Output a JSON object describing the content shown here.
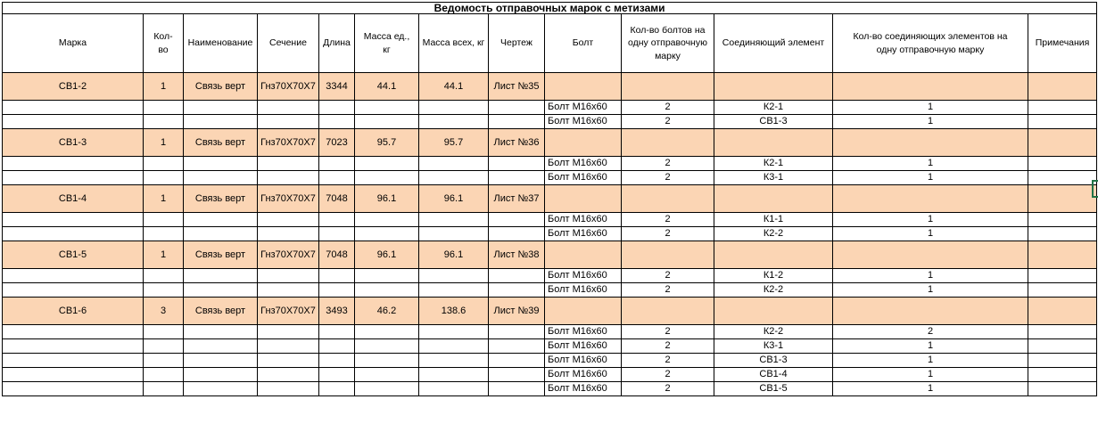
{
  "title": "Ведомость отправочных марок с метизами",
  "columns": [
    "Марка",
    "Кол-во",
    "Наименование",
    "Сечение",
    "Длина",
    "Масса ед., кг",
    "Масса всех, кг",
    "Чертеж",
    "Болт",
    "Кол-во болтов на одну отправочную марку",
    "Соединяющий элемент",
    "Кол-во соединяющих элементов на одну отправочную марку",
    "Примечания"
  ],
  "blocks": [
    {
      "mark": {
        "marka": "СВ1-2",
        "qty": "1",
        "name": "Связь верт",
        "section": "Гнз70Х70Х7",
        "length": "3344",
        "unit_mass": "44.1",
        "total_mass": "44.1",
        "sheet": "Лист №35"
      },
      "bolts": [
        {
          "bolt": "Болт М16х60",
          "bolt_qty": "2",
          "element": "К2-1",
          "element_qty": "1"
        },
        {
          "bolt": "Болт М16х60",
          "bolt_qty": "2",
          "element": "СВ1-3",
          "element_qty": "1"
        }
      ]
    },
    {
      "mark": {
        "marka": "СВ1-3",
        "qty": "1",
        "name": "Связь верт",
        "section": "Гнз70Х70Х7",
        "length": "7023",
        "unit_mass": "95.7",
        "total_mass": "95.7",
        "sheet": "Лист №36"
      },
      "bolts": [
        {
          "bolt": "Болт М16х60",
          "bolt_qty": "2",
          "element": "К2-1",
          "element_qty": "1"
        },
        {
          "bolt": "Болт М16х60",
          "bolt_qty": "2",
          "element": "К3-1",
          "element_qty": "1"
        }
      ]
    },
    {
      "mark": {
        "marka": "СВ1-4",
        "qty": "1",
        "name": "Связь верт",
        "section": "Гнз70Х70Х7",
        "length": "7048",
        "unit_mass": "96.1",
        "total_mass": "96.1",
        "sheet": "Лист №37"
      },
      "bolts": [
        {
          "bolt": "Болт М16х60",
          "bolt_qty": "2",
          "element": "К1-1",
          "element_qty": "1"
        },
        {
          "bolt": "Болт М16х60",
          "bolt_qty": "2",
          "element": "К2-2",
          "element_qty": "1"
        }
      ]
    },
    {
      "mark": {
        "marka": "СВ1-5",
        "qty": "1",
        "name": "Связь верт",
        "section": "Гнз70Х70Х7",
        "length": "7048",
        "unit_mass": "96.1",
        "total_mass": "96.1",
        "sheet": "Лист №38"
      },
      "bolts": [
        {
          "bolt": "Болт М16х60",
          "bolt_qty": "2",
          "element": "К1-2",
          "element_qty": "1"
        },
        {
          "bolt": "Болт М16х60",
          "bolt_qty": "2",
          "element": "К2-2",
          "element_qty": "1"
        }
      ]
    },
    {
      "mark": {
        "marka": "СВ1-6",
        "qty": "3",
        "name": "Связь верт",
        "section": "Гнз70Х70Х7",
        "length": "3493",
        "unit_mass": "46.2",
        "total_mass": "138.6",
        "sheet": "Лист №39"
      },
      "bolts": [
        {
          "bolt": "Болт М16х60",
          "bolt_qty": "2",
          "element": "К2-2",
          "element_qty": "2"
        },
        {
          "bolt": "Болт М16х60",
          "bolt_qty": "2",
          "element": "К3-1",
          "element_qty": "1"
        },
        {
          "bolt": "Болт М16х60",
          "bolt_qty": "2",
          "element": "СВ1-3",
          "element_qty": "1"
        },
        {
          "bolt": "Болт М16х60",
          "bolt_qty": "2",
          "element": "СВ1-4",
          "element_qty": "1"
        },
        {
          "bolt": "Болт М16х60",
          "bolt_qty": "2",
          "element": "СВ1-5",
          "element_qty": "1"
        }
      ]
    }
  ],
  "colors": {
    "highlight_fill": "#FBD5B4",
    "selection_border": "#217346",
    "grid_border": "#000000"
  }
}
